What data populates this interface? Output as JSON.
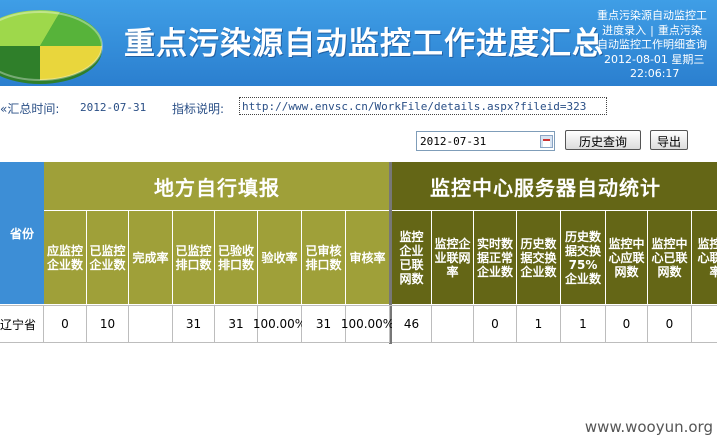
{
  "header": {
    "title": "重点污染源自动监控工作进度汇总",
    "links": {
      "line1": "重点污染源自动监控工",
      "entry": "进度录入",
      "sep": "|",
      "line2b": "重点污染",
      "line3": "自动监控工作明细查询",
      "date": "2012-08-01 星期三",
      "time": "22:06:17"
    }
  },
  "info": {
    "summary_label": "«汇总时间:",
    "summary_date": "2012-07-31",
    "indicator_label": "指标说明:",
    "indicator_url": "http://www.envsc.cn/WorkFile/details.aspx?fileid=323"
  },
  "toolbar": {
    "date_value": "2012-07-31",
    "history_button": "历史查询",
    "export_button": "导出"
  },
  "table": {
    "province_header": "省份",
    "group_local": "地方自行填报",
    "group_center": "监控中心服务器自动统计",
    "local_columns": [
      "应监控企业数",
      "已监控企业数",
      "完成率",
      "已监控排口数",
      "已验收排口数",
      "验收率",
      "已审核排口数",
      "审核率"
    ],
    "center_columns": [
      "监控企业已联网数",
      "监控企业联网率",
      "实时数据正常企业数",
      "历史数据交换企业数",
      "历史数据交换75%企业数",
      "监控中心应联网数",
      "监控中心已联网数",
      "监控中心联网率"
    ],
    "rows": [
      {
        "province": "辽宁省",
        "local": [
          "0",
          "10",
          "",
          "31",
          "31",
          "100.00%",
          "31",
          "100.00%"
        ],
        "center": [
          "46",
          "",
          "0",
          "1",
          "1",
          "0",
          "0",
          ""
        ]
      }
    ]
  },
  "watermark": "www.wooyun.org"
}
